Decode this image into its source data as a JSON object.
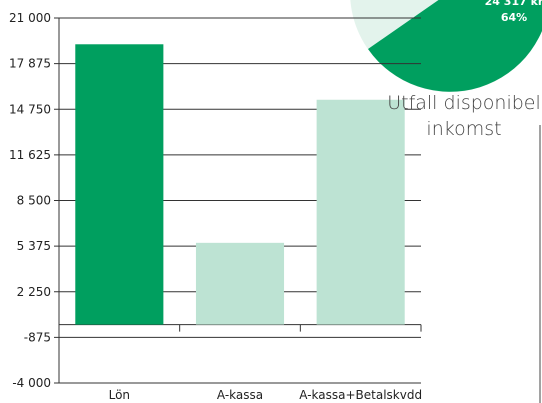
{
  "chart_data": {
    "type": "bar",
    "categories": [
      "Lön",
      "A-kassa",
      "A-kassa+Betalskvdd"
    ],
    "values": [
      19200,
      5600,
      15400
    ],
    "ylim": [
      -4000,
      21000
    ],
    "yticks": [
      "21 000",
      "17 875",
      "14 750",
      "11 625",
      "8 500",
      "5 375",
      "2 250",
      "-875",
      "-4 000"
    ],
    "bar_colors": [
      "#009f5f",
      "#bde3d3",
      "#bde3d3"
    ],
    "grid": true
  },
  "pie": {
    "slice_value_label": "24 317 kr",
    "slice_percent_label": "64%",
    "title_line1": "Utfall disponibel",
    "title_line2": "inkomst",
    "colors": {
      "main": "#009f5f",
      "light": "#e3f3ec"
    }
  }
}
